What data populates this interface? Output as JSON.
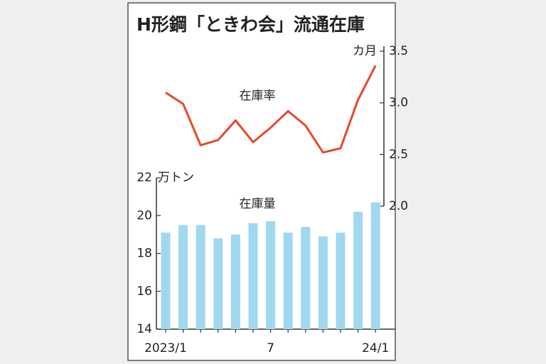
{
  "chart_data": {
    "type": "bar_line",
    "title": "H形鋼「ときわ会」流通在庫",
    "categories": [
      "2023/1",
      null,
      null,
      null,
      null,
      null,
      "7",
      null,
      null,
      null,
      null,
      null,
      "24/1"
    ],
    "series": [
      {
        "name": "在庫量",
        "type": "bar",
        "axis": "y",
        "color": "#a0d8ef",
        "values": [
          19.1,
          19.5,
          19.5,
          18.8,
          19.0,
          19.6,
          19.7,
          19.1,
          19.4,
          18.9,
          19.1,
          20.2,
          20.7
        ]
      },
      {
        "name": "在庫率",
        "type": "line",
        "axis": "y2",
        "color": "#e8482a",
        "values": [
          3.1,
          2.99,
          2.59,
          2.64,
          2.83,
          2.62,
          2.76,
          2.92,
          2.78,
          2.52,
          2.56,
          3.03,
          3.36
        ]
      }
    ],
    "ylabel": "万トン",
    "ylim": [
      14,
      22
    ],
    "yticks": [
      14,
      16,
      18,
      20,
      22
    ],
    "y2label": "カ月",
    "y2lim": [
      2.0,
      3.5
    ],
    "y2ticks": [
      {
        "value": 2.0,
        "label": "2.0"
      },
      {
        "value": 2.5,
        "label": "2.5"
      },
      {
        "value": 3.0,
        "label": "3.0"
      },
      {
        "value": 3.5,
        "label": "3.5"
      }
    ]
  }
}
